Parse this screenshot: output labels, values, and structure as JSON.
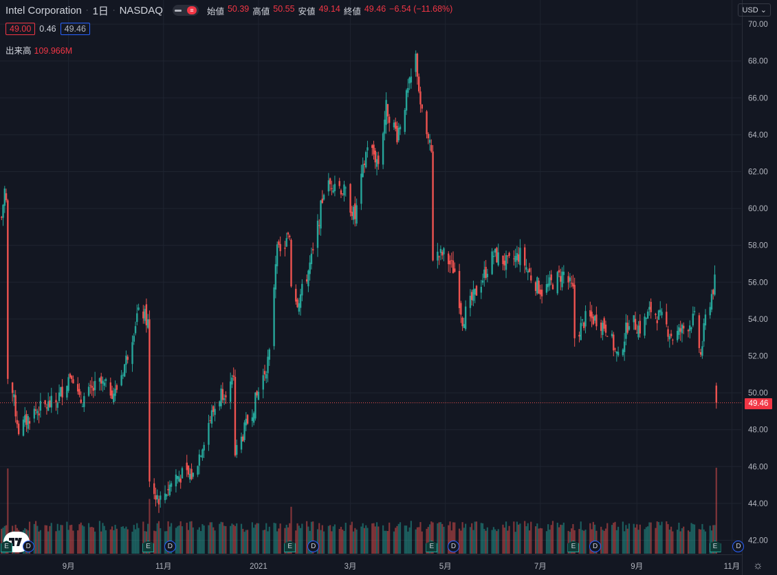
{
  "header": {
    "symbol": "Intel Corporation",
    "interval": "1日",
    "exchange": "NASDAQ",
    "open_label": "始値",
    "open": "50.39",
    "high_label": "高値",
    "high": "50.55",
    "low_label": "安値",
    "low": "49.14",
    "close_label": "終値",
    "close": "49.46",
    "change": "−6.54 (−11.68%)",
    "toggle_glyph": "≡"
  },
  "row2": {
    "bid": "49.00",
    "spread": "0.46",
    "ask": "49.46"
  },
  "volume": {
    "label": "出来高",
    "value": "109.966M"
  },
  "currency": "USD",
  "last_price_tag": "49.46",
  "colors": {
    "up": "#26a69a",
    "down": "#ef5350",
    "background": "#131722",
    "grid": "#1f2430"
  },
  "icons": [
    "tradingview-logo-icon",
    "settings-icon",
    "earnings-icon",
    "dividend-icon"
  ],
  "markers": {
    "earnings": "E",
    "dividend": "D"
  },
  "chart_data": {
    "type": "candlestick",
    "title": "Intel Corporation · 1日 · NASDAQ",
    "ylim": [
      41.5,
      70.5
    ],
    "y_ticks": [
      "70.00",
      "68.00",
      "66.00",
      "64.00",
      "62.00",
      "60.00",
      "58.00",
      "56.00",
      "54.00",
      "52.00",
      "50.00",
      "48.00",
      "46.00",
      "44.00",
      "42.00"
    ],
    "x_labels": [
      "9月",
      "11月",
      "2021",
      "3月",
      "5月",
      "7月",
      "9月",
      "11月"
    ],
    "x_label_dates": [
      "2020-09-01",
      "2020-11-01",
      "2021-01-01",
      "2021-03-01",
      "2021-05-01",
      "2021-07-01",
      "2021-09-01",
      "2021-11-01"
    ],
    "x_range": [
      "2020-07-19",
      "2021-11-07"
    ],
    "grid": true,
    "series": [
      {
        "kind": "close",
        "values": [
          [
            "2020-07-20",
            59.5
          ],
          [
            "2020-07-22",
            61.0
          ],
          [
            "2020-07-23",
            60.3
          ],
          [
            "2020-07-24",
            50.6
          ],
          [
            "2020-07-27",
            50.0
          ],
          [
            "2020-07-31",
            48.0
          ],
          [
            "2020-08-10",
            49.0
          ],
          [
            "2020-08-24",
            49.5
          ],
          [
            "2020-09-03",
            51.2
          ],
          [
            "2020-09-08",
            49.5
          ],
          [
            "2020-09-21",
            50.5
          ],
          [
            "2020-10-01",
            50.0
          ],
          [
            "2020-10-08",
            51.8
          ],
          [
            "2020-10-15",
            54.2
          ],
          [
            "2020-10-19",
            54.3
          ],
          [
            "2020-10-22",
            53.8
          ],
          [
            "2020-10-23",
            45.0
          ],
          [
            "2020-10-30",
            44.2
          ],
          [
            "2020-11-09",
            45.5
          ],
          [
            "2020-11-20",
            45.5
          ],
          [
            "2020-11-30",
            48.4
          ],
          [
            "2020-12-08",
            50.0
          ],
          [
            "2020-12-16",
            50.5
          ],
          [
            "2020-12-17",
            46.7
          ],
          [
            "2020-12-21",
            47.5
          ],
          [
            "2020-12-31",
            49.8
          ],
          [
            "2021-01-08",
            52.0
          ],
          [
            "2021-01-13",
            58.5
          ],
          [
            "2021-01-14",
            57.6
          ],
          [
            "2021-01-15",
            57.5
          ],
          [
            "2021-01-21",
            58.5
          ],
          [
            "2021-01-22",
            56.0
          ],
          [
            "2021-01-26",
            55.0
          ],
          [
            "2021-01-29",
            55.5
          ],
          [
            "2021-02-05",
            57.5
          ],
          [
            "2021-02-12",
            61.0
          ],
          [
            "2021-02-19",
            61.5
          ],
          [
            "2021-02-26",
            60.8
          ],
          [
            "2021-03-04",
            59.5
          ],
          [
            "2021-03-12",
            63.5
          ],
          [
            "2021-03-19",
            62.5
          ],
          [
            "2021-03-24",
            65.5
          ],
          [
            "2021-03-31",
            64.0
          ],
          [
            "2021-04-09",
            67.0
          ],
          [
            "2021-04-12",
            68.2
          ],
          [
            "2021-04-16",
            65.0
          ],
          [
            "2021-04-22",
            63.0
          ],
          [
            "2021-04-23",
            57.4
          ],
          [
            "2021-04-30",
            57.5
          ],
          [
            "2021-05-07",
            56.6
          ],
          [
            "2021-05-12",
            54.0
          ],
          [
            "2021-05-21",
            55.5
          ],
          [
            "2021-06-01",
            57.5
          ],
          [
            "2021-06-10",
            57.0
          ],
          [
            "2021-06-18",
            57.5
          ],
          [
            "2021-06-25",
            56.3
          ],
          [
            "2021-07-02",
            55.5
          ],
          [
            "2021-07-09",
            56.0
          ],
          [
            "2021-07-16",
            56.5
          ],
          [
            "2021-07-22",
            55.5
          ],
          [
            "2021-07-23",
            53.0
          ],
          [
            "2021-07-30",
            54.0
          ],
          [
            "2021-08-06",
            54.0
          ],
          [
            "2021-08-13",
            53.5
          ],
          [
            "2021-08-20",
            51.8
          ],
          [
            "2021-08-27",
            54.0
          ],
          [
            "2021-09-03",
            53.5
          ],
          [
            "2021-09-10",
            54.5
          ],
          [
            "2021-09-17",
            54.0
          ],
          [
            "2021-09-24",
            53.0
          ],
          [
            "2021-10-01",
            53.5
          ],
          [
            "2021-10-08",
            54.0
          ],
          [
            "2021-10-12",
            52.0
          ],
          [
            "2021-10-15",
            54.0
          ],
          [
            "2021-10-21",
            56.0
          ],
          [
            "2021-10-22",
            49.46
          ]
        ]
      }
    ],
    "volume_peaks_M": [
      [
        "2020-07-24",
        109
      ],
      [
        "2020-10-23",
        70
      ],
      [
        "2021-01-22",
        60
      ],
      [
        "2021-04-23",
        40
      ],
      [
        "2021-07-23",
        30
      ],
      [
        "2021-10-22",
        109.966
      ]
    ],
    "events": {
      "earnings": [
        "2020-07-23",
        "2020-10-22",
        "2021-01-21",
        "2021-04-22",
        "2021-07-22",
        "2021-10-21"
      ],
      "dividends": [
        "2020-08-06",
        "2020-11-05",
        "2021-02-05",
        "2021-05-06",
        "2021-08-05",
        "2021-11-05"
      ]
    },
    "last_price": 49.46
  }
}
